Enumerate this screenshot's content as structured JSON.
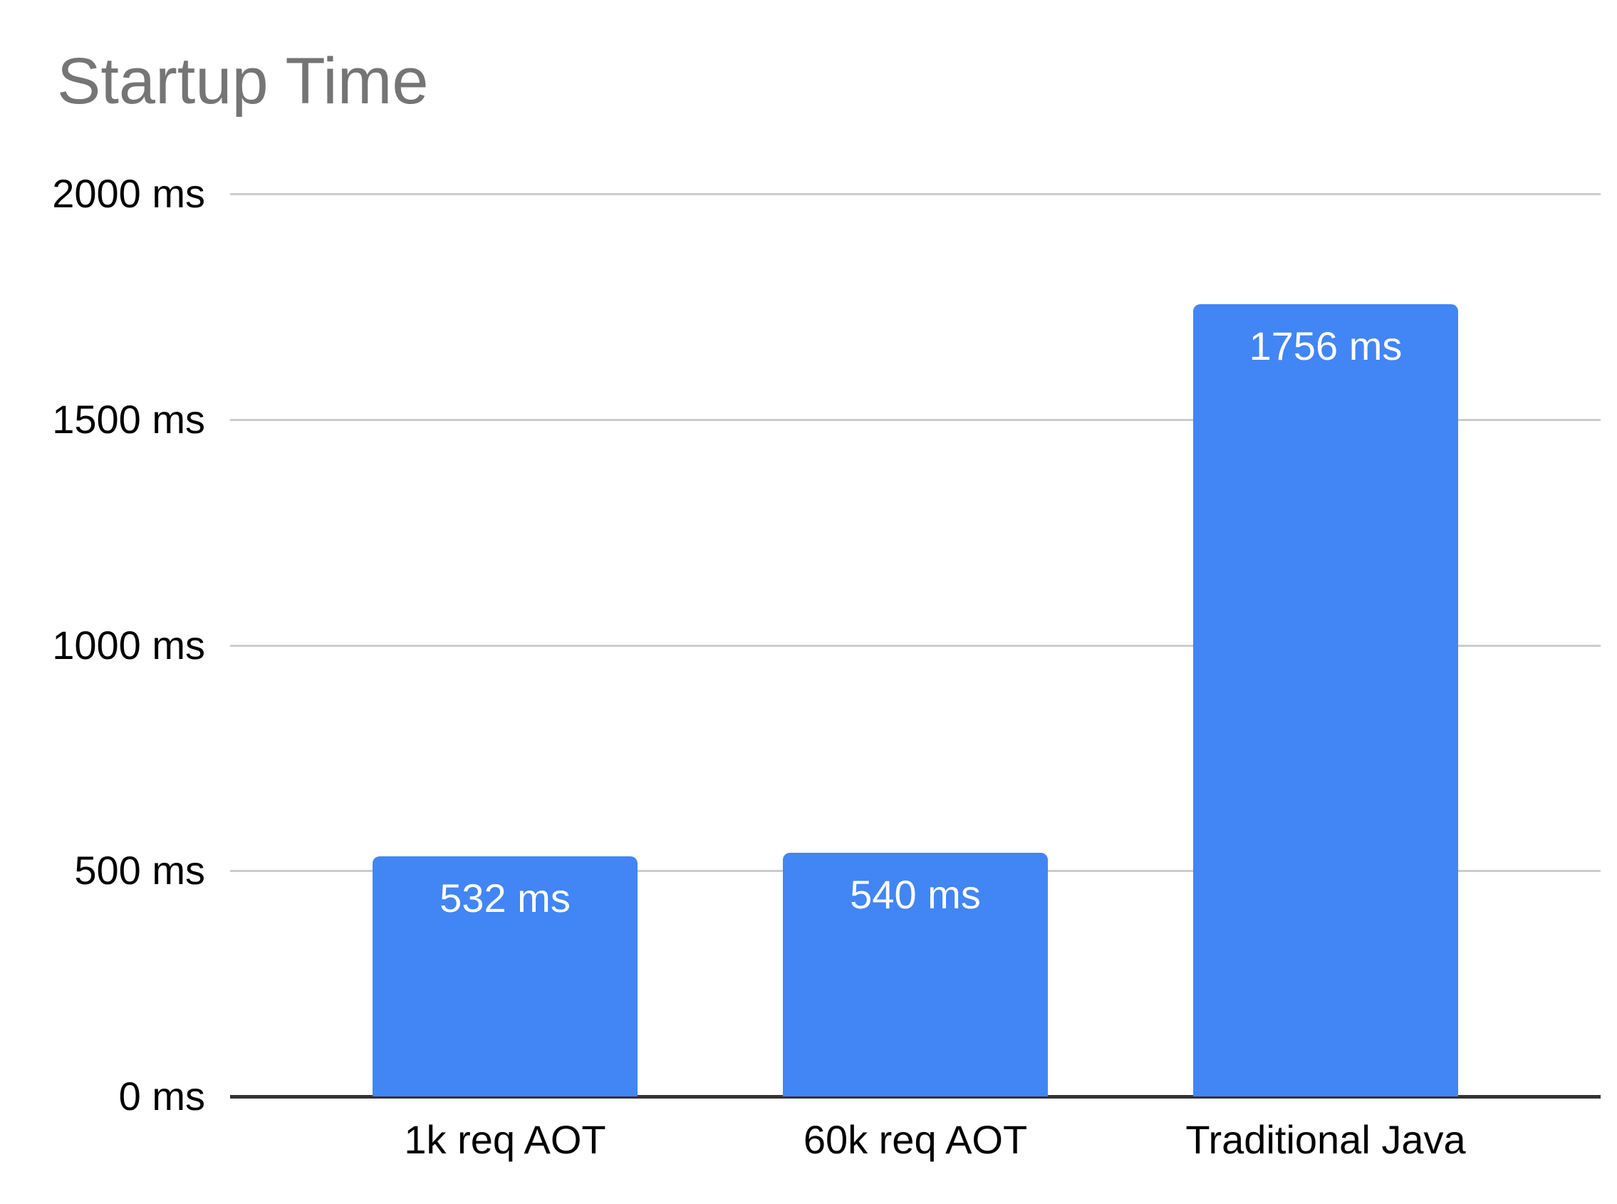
{
  "chart_data": {
    "type": "bar",
    "title": "Startup Time",
    "categories": [
      "1k req AOT",
      "60k req AOT",
      "Traditional Java"
    ],
    "values": [
      532,
      540,
      1756
    ],
    "value_labels": [
      "532 ms",
      "540 ms",
      "1756 ms"
    ],
    "unit": "ms",
    "xlabel": "",
    "ylabel": "",
    "ylim": [
      0,
      2000
    ],
    "yticks": [
      {
        "value": 0,
        "label": "0 ms"
      },
      {
        "value": 500,
        "label": "500 ms"
      },
      {
        "value": 1000,
        "label": "1000 ms"
      },
      {
        "value": 1500,
        "label": "1500 ms"
      },
      {
        "value": 2000,
        "label": "2000 ms"
      }
    ],
    "grid": "horizontal",
    "legend_position": "none",
    "colors": {
      "bar": "#4285F4",
      "title_text": "#757575",
      "axis_text": "#000000",
      "value_label_text": "#ffffff",
      "gridline": "#cccccc",
      "baseline": "#333333",
      "background": "#ffffff"
    }
  }
}
